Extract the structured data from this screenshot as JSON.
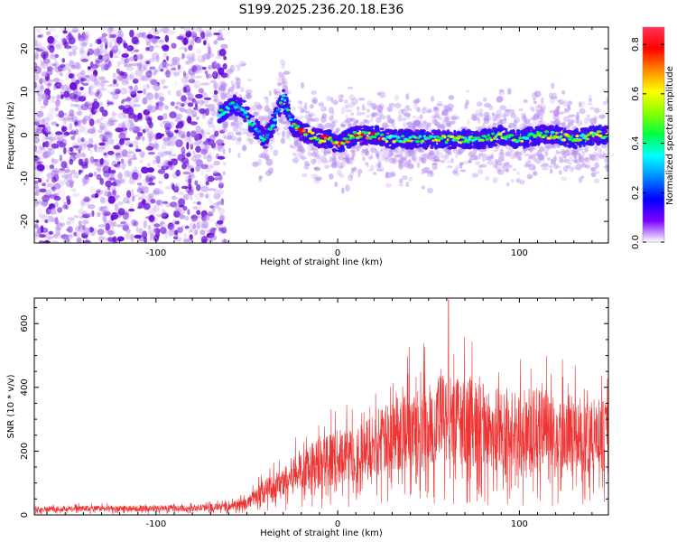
{
  "title": "S199.2025.236.20.18.E36",
  "colors": {
    "signal": "#ee3333",
    "purple_scatter": "#7a22e0",
    "axis": "#000000"
  },
  "chart_data": [
    {
      "type": "heatmap",
      "name": "spectrogram",
      "xlabel": "Height of straight line (km)",
      "ylabel": "Frequency (Hz)",
      "xlim": [
        -167,
        149
      ],
      "ylim": [
        -25,
        25
      ],
      "xticks": [
        -100,
        0,
        100
      ],
      "xtick_labels": [
        "-100",
        "0",
        "100"
      ],
      "yticks": [
        -20,
        -10,
        0,
        10,
        20
      ],
      "ytick_labels": [
        "-20",
        "-10",
        "0",
        "10",
        "20"
      ],
      "noise_region_x": [
        -167,
        -62
      ],
      "ridge": {
        "x": [
          -65,
          -57,
          -52,
          -48,
          -44,
          -40,
          -35,
          -30,
          -25,
          -20,
          -15,
          -10,
          -5,
          0,
          5,
          10,
          15,
          20,
          30,
          40,
          50,
          60,
          70,
          80,
          90,
          100,
          110,
          120,
          130,
          140,
          148
        ],
        "y": [
          5,
          7,
          6,
          3,
          1,
          -1,
          3,
          9,
          2,
          1,
          0,
          -1,
          -1,
          -2,
          -1,
          0,
          0,
          0,
          -1,
          -1,
          -1,
          -1,
          -1,
          -1,
          0,
          -1,
          0,
          0,
          -1,
          0,
          0
        ]
      },
      "colorbar": {
        "label": "Normalized spectral amplitude",
        "range": [
          0,
          0.87
        ],
        "ticks": [
          0,
          0.2,
          0.4,
          0.6,
          0.8
        ],
        "tick_labels": [
          "0.0",
          "0.2",
          "0.4",
          "0.6",
          "0.8"
        ],
        "colormap": [
          "#ffffff",
          "#7a00ff",
          "#0000ff",
          "#0088ff",
          "#00ffff",
          "#00ff44",
          "#88ff00",
          "#ffff00",
          "#ff8800",
          "#ff0000",
          "#ff3355"
        ]
      }
    },
    {
      "type": "line",
      "name": "snr",
      "xlabel": "Height of straight line (km)",
      "ylabel": "SNR (10 * v/v)",
      "xlim": [
        -167,
        149
      ],
      "ylim": [
        0,
        680
      ],
      "xticks": [
        -100,
        0,
        100
      ],
      "xtick_labels": [
        "-100",
        "0",
        "100"
      ],
      "yticks": [
        0,
        200,
        400,
        600
      ],
      "ytick_labels": [
        "0",
        "200",
        "400",
        "600"
      ],
      "envelope": {
        "x": [
          -167,
          -80,
          -60,
          -50,
          -45,
          -40,
          -30,
          -20,
          -10,
          0,
          10,
          20,
          30,
          40,
          50,
          60,
          70,
          80,
          90,
          100,
          110,
          120,
          130,
          140,
          149
        ],
        "y": [
          20,
          22,
          28,
          40,
          60,
          80,
          110,
          150,
          175,
          190,
          200,
          225,
          260,
          300,
          310,
          320,
          310,
          295,
          285,
          280,
          280,
          275,
          265,
          260,
          255
        ]
      },
      "peak_x": 61,
      "peak_y": 675
    }
  ]
}
